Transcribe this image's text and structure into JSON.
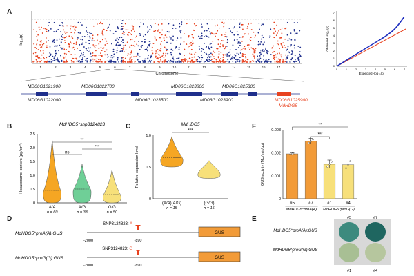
{
  "panels": {
    "A": "A",
    "B": "B",
    "C": "C",
    "D": "D",
    "E": "E",
    "F": "F"
  },
  "manhattan": {
    "ylabel": "-log₁₀(p)",
    "xlabel": "Chromosome",
    "chromosomes": [
      "1",
      "2",
      "3",
      "4",
      "5",
      "6",
      "7",
      "8",
      "9",
      "10",
      "11",
      "12",
      "13",
      "14",
      "15",
      "16",
      "17",
      "0"
    ],
    "colors": {
      "odd": "#e8421f",
      "even": "#1f2f8c"
    }
  },
  "qq": {
    "xlabel": "Expected -log₁₀(p)",
    "ylabel": "Observed -log₁₀(p)",
    "xticks": [
      "0",
      "1",
      "2",
      "3",
      "4",
      "5",
      "6",
      "7"
    ],
    "yticks": [
      "0",
      "1",
      "2",
      "3",
      "4",
      "5",
      "6",
      "7"
    ]
  },
  "genes": [
    {
      "name": "MD06G1021900",
      "highlight": false
    },
    {
      "name": "MD06G1022700",
      "highlight": false
    },
    {
      "name": "MD06G1023800",
      "highlight": false
    },
    {
      "name": "MD06G1025300",
      "highlight": false
    },
    {
      "name": "MD06G1022000",
      "highlight": false
    },
    {
      "name": "MD06G1023500",
      "highlight": false
    },
    {
      "name": "MD06G1023900",
      "highlight": false
    },
    {
      "name": "MD06G1025900",
      "highlight": true
    },
    {
      "name": "MdHDG5",
      "highlight": true
    }
  ],
  "chart_data": [
    {
      "type": "violin",
      "title": "MdHDG5^snp3124823",
      "ylabel": "Hexacosanol content (μg/cm²)",
      "categories": [
        "A/A",
        "A/G",
        "G/G"
      ],
      "n_labels": [
        "n = 60",
        "n = 33",
        "n = 50"
      ],
      "medians": [
        0.45,
        0.5,
        0.3
      ],
      "ylim": [
        0,
        2.5
      ],
      "yticks": [
        "0",
        "0.5",
        "1.0",
        "1.5",
        "2.0",
        "2.5"
      ],
      "colors": [
        "#f5a623",
        "#6fcf97",
        "#f7e07a"
      ],
      "significance": [
        {
          "pair": "A/A–A/G",
          "label": "ns"
        },
        {
          "pair": "A/A–G/G",
          "label": "**"
        },
        {
          "pair": "A/G–G/G",
          "label": "***"
        }
      ]
    },
    {
      "type": "violin",
      "title": "MdHDG5",
      "ylabel": "Relative expression level",
      "categories": [
        "(A/A)(A/G)",
        "(G/G)"
      ],
      "n_labels": [
        "n = 15",
        "n = 15"
      ],
      "medians": [
        0.65,
        0.42
      ],
      "ylim": [
        0,
        1.0
      ],
      "yticks": [
        "0",
        "0.5",
        "1.0"
      ],
      "colors": [
        "#f5a623",
        "#f7e07a"
      ],
      "significance": [
        {
          "pair": "(A/A)(A/G)–(G/G)",
          "label": "***"
        }
      ]
    },
    {
      "type": "bar",
      "ylabel": "GUS activity (MU/min/μg)",
      "categories": [
        "#5",
        "#7",
        "#1",
        "#4"
      ],
      "values": [
        0.00195,
        0.0025,
        0.0015,
        0.00148
      ],
      "errors": [
        5e-05,
        0.00012,
        0.00018,
        0.00025
      ],
      "ylim": [
        0,
        0.003
      ],
      "yticks": [
        "0",
        "0.001",
        "0.002",
        "0.003"
      ],
      "colors": [
        "#f29b38",
        "#f29b38",
        "#f7e07a",
        "#f7e07a"
      ],
      "groups": [
        "MdHDG5^proA(A)",
        "MdHDG5^proG(G)"
      ],
      "significance": [
        {
          "pair": "#5–#4",
          "label": "**"
        },
        {
          "pair": "#7–#1",
          "label": "***"
        }
      ]
    }
  ],
  "constructs": [
    {
      "name": "MdHDG5^proA(A):GUS",
      "snp": "SNP3124823: ",
      "allele": "A",
      "start": "-2000",
      "pos": "-890",
      "reporter": "GUS"
    },
    {
      "name": "MdHDG5^proG(G):GUS",
      "snp": "SNP3124823: ",
      "allele": "G",
      "start": "-2000",
      "pos": "-890",
      "reporter": "GUS"
    }
  ],
  "stain": {
    "rows": [
      "MdHDG5^proA(A):GUS",
      "MdHDG5^proG(G):GUS"
    ],
    "top_labels": [
      "#5",
      "#7"
    ],
    "bottom_labels": [
      "#1",
      "#4"
    ]
  }
}
